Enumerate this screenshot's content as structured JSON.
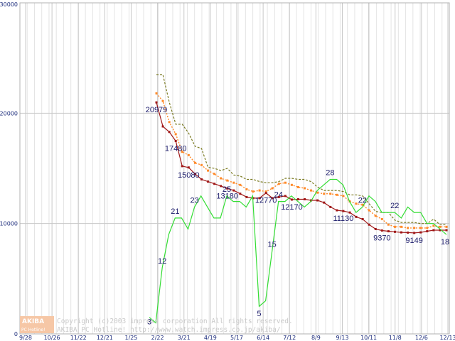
{
  "chart_data": {
    "type": "line",
    "title": "",
    "xlabel": "",
    "ylabel": "",
    "ylim": [
      0,
      30000
    ],
    "y_ticks": [
      "0",
      "10000",
      "20000",
      "30000"
    ],
    "x_ticks": [
      "9/28",
      "10/26",
      "11/22",
      "12/21",
      "1/25",
      "2/22",
      "3/21",
      "4/19",
      "5/17",
      "6/14",
      "7/12",
      "8/9",
      "9/13",
      "10/11",
      "11/8",
      "12/6",
      "12/13"
    ],
    "grid": true,
    "series": [
      {
        "name": "price-max",
        "color": "#7a7a20",
        "style": "dashed",
        "x": [
          0,
          1,
          2,
          3,
          4,
          5,
          6,
          7,
          8,
          9,
          10,
          11,
          12,
          13,
          14,
          15,
          16,
          17,
          18,
          19,
          20,
          21,
          22,
          23,
          24,
          25,
          26,
          27,
          28,
          29,
          30,
          31,
          32,
          33,
          34,
          35,
          36,
          37,
          38,
          39,
          40,
          41,
          42,
          43,
          44,
          45
        ],
        "y": [
          23500,
          23500,
          21000,
          19000,
          19000,
          18200,
          17000,
          16800,
          15100,
          15000,
          14800,
          15000,
          14400,
          14300,
          14000,
          14000,
          13800,
          13700,
          13700,
          13800,
          14100,
          14100,
          14000,
          14000,
          13800,
          13300,
          13000,
          13000,
          13000,
          12900,
          12600,
          12600,
          12500,
          11800,
          11100,
          11000,
          11000,
          10300,
          10100,
          10100,
          10100,
          10000,
          10000,
          10400,
          9900,
          9900
        ]
      },
      {
        "name": "price-avg",
        "color": "#ff8a2a",
        "style": "dotted",
        "x": [
          0,
          1,
          2,
          3,
          4,
          5,
          6,
          7,
          8,
          9,
          10,
          11,
          12,
          13,
          14,
          15,
          16,
          17,
          18,
          19,
          20,
          21,
          22,
          23,
          24,
          25,
          26,
          27,
          28,
          29,
          30,
          31,
          32,
          33,
          34,
          35,
          36,
          37,
          38,
          39,
          40,
          41,
          42,
          43,
          44,
          45
        ],
        "y": [
          21800,
          21100,
          19200,
          18100,
          16500,
          16200,
          15500,
          15300,
          14800,
          14500,
          14100,
          13900,
          13700,
          13500,
          13100,
          12900,
          13000,
          12900,
          13200,
          13600,
          13700,
          13500,
          13300,
          13200,
          13000,
          12800,
          12700,
          12700,
          12600,
          12500,
          12000,
          11800,
          11700,
          11200,
          10700,
          10400,
          9900,
          9700,
          9700,
          9600,
          9600,
          9600,
          9600,
          9800,
          9700,
          9700
        ]
      },
      {
        "name": "price-min",
        "color": "#a01818",
        "style": "solid",
        "x": [
          0,
          1,
          2,
          3,
          4,
          5,
          6,
          7,
          8,
          9,
          10,
          11,
          12,
          13,
          14,
          15,
          16,
          17,
          18,
          19,
          20,
          21,
          22,
          23,
          24,
          25,
          26,
          27,
          28,
          29,
          30,
          31,
          32,
          33,
          34,
          35,
          36,
          37,
          38,
          39,
          40,
          41,
          42,
          43,
          44,
          45
        ],
        "y": [
          20979,
          18800,
          18300,
          17480,
          15200,
          15080,
          14500,
          14000,
          13800,
          13600,
          13400,
          13180,
          13000,
          12700,
          12400,
          12300,
          12300,
          12770,
          12300,
          12400,
          12500,
          12170,
          12200,
          12200,
          12100,
          12100,
          11900,
          11500,
          11200,
          11130,
          11000,
          10600,
          10400,
          9900,
          9500,
          9370,
          9300,
          9250,
          9200,
          9180,
          9149,
          9200,
          9300,
          9400,
          9400,
          9400
        ]
      },
      {
        "name": "shop-count",
        "color": "#33dd33",
        "style": "solid",
        "axis_max": 60,
        "x": [
          0,
          1,
          2,
          3,
          4,
          5,
          6,
          7,
          8,
          9,
          10,
          11,
          12,
          13,
          14,
          15,
          16,
          17,
          18,
          19,
          20,
          21,
          22,
          23,
          24,
          25,
          26,
          27,
          28,
          29,
          30,
          31,
          32,
          33,
          34,
          35,
          36,
          37,
          38,
          39,
          40,
          41,
          42,
          43,
          44,
          45,
          46
        ],
        "y": [
          3,
          2,
          12,
          18,
          21,
          21,
          19,
          23,
          25,
          23,
          21,
          21,
          25,
          24,
          24,
          23,
          25,
          5,
          6,
          15,
          24,
          24,
          25,
          24,
          23,
          24,
          26,
          27,
          28,
          28,
          27,
          24,
          22,
          23,
          25,
          24,
          22,
          22,
          22,
          21,
          23,
          22,
          22,
          20,
          20,
          19,
          18
        ]
      }
    ],
    "data_labels": [
      {
        "text": "20979",
        "series": "price-min",
        "point": 0
      },
      {
        "text": "17480",
        "series": "price-min",
        "point": 3
      },
      {
        "text": "15080",
        "series": "price-min",
        "point": 5
      },
      {
        "text": "13180",
        "series": "price-min",
        "point": 11
      },
      {
        "text": "12770",
        "series": "price-min",
        "point": 17
      },
      {
        "text": "12170",
        "series": "price-min",
        "point": 21
      },
      {
        "text": "11130",
        "series": "price-min",
        "point": 29
      },
      {
        "text": "9370",
        "series": "price-min",
        "point": 35
      },
      {
        "text": "9149",
        "series": "price-min",
        "point": 40
      },
      {
        "text": "3",
        "series": "shop-count",
        "point": 0
      },
      {
        "text": "12",
        "series": "shop-count",
        "point": 2
      },
      {
        "text": "21",
        "series": "shop-count",
        "point": 4
      },
      {
        "text": "23",
        "series": "shop-count",
        "point": 7
      },
      {
        "text": "25",
        "series": "shop-count",
        "point": 12
      },
      {
        "text": "5",
        "series": "shop-count",
        "point": 17
      },
      {
        "text": "15",
        "series": "shop-count",
        "point": 19
      },
      {
        "text": "24",
        "series": "shop-count",
        "point": 20
      },
      {
        "text": "28",
        "series": "shop-count",
        "point": 28
      },
      {
        "text": "22",
        "series": "shop-count",
        "point": 33
      },
      {
        "text": "22",
        "series": "shop-count",
        "point": 38
      },
      {
        "text": "18",
        "series": "shop-count",
        "point": 46
      }
    ]
  },
  "watermark": {
    "logo_top": "AKIBA",
    "logo_bottom": "PC Hotline!",
    "copyright": "Copyright (c)2003 impress corporation All rights reserved.",
    "site_line": "AKIBA PC Hotline!  http://www.watch.impress.co.jp/akiba/"
  }
}
